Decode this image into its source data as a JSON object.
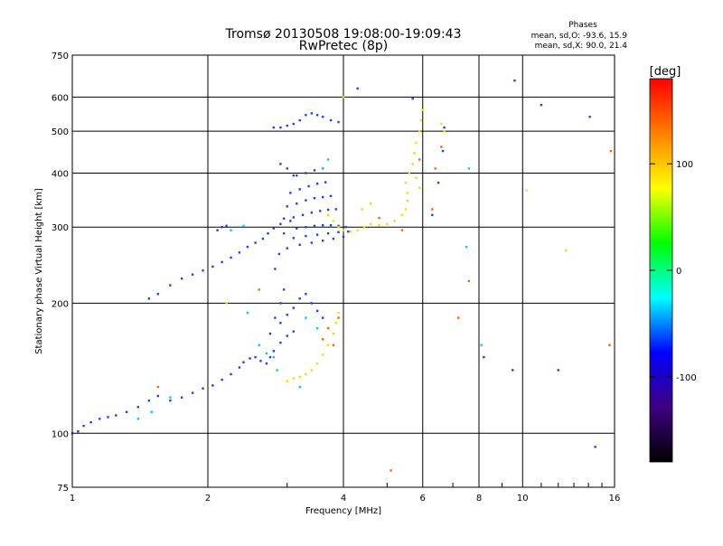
{
  "chart_data": {
    "type": "scatter",
    "title": "Tromsø 20130508 19:08:00-19:09:43",
    "subtitle": "RwPretec (8p)",
    "xlabel": "Frequency [MHz]",
    "ylabel": "Stationary phase Virtual Height [km]",
    "x_scale": "log",
    "y_scale": "log",
    "xlim": [
      1,
      16
    ],
    "ylim": [
      75,
      750
    ],
    "x_ticks": [
      1,
      2,
      4,
      6,
      8,
      10,
      16
    ],
    "y_ticks": [
      75,
      100,
      200,
      300,
      400,
      500,
      600,
      750
    ],
    "grid": true,
    "stats": {
      "heading": "Phases",
      "line_o": "mean, sd,O:  -93.6, 15.9",
      "line_x": "mean, sd,X:  90.0, 21.4"
    },
    "colorbar": {
      "label": "[deg]",
      "ticks": [
        100,
        0,
        -100
      ],
      "range": [
        -180,
        180
      ],
      "colors": [
        "#ff0000",
        "#ff8000",
        "#ffff00",
        "#00ff00",
        "#00ffff",
        "#0000ff",
        "#400080",
        "#000000"
      ]
    },
    "series": [
      {
        "name": "",
        "phase_deg": -95,
        "color": "#1a40ff",
        "points": [
          [
            1.0,
            100
          ],
          [
            1.03,
            101
          ],
          [
            1.06,
            104
          ],
          [
            1.1,
            106
          ],
          [
            1.15,
            108
          ],
          [
            1.2,
            109
          ],
          [
            1.25,
            110
          ],
          [
            1.32,
            112
          ],
          [
            1.4,
            115
          ],
          [
            1.48,
            119
          ],
          [
            1.55,
            122
          ],
          [
            1.65,
            119
          ],
          [
            1.75,
            121
          ],
          [
            1.85,
            124
          ],
          [
            1.95,
            127
          ],
          [
            2.05,
            129
          ],
          [
            2.15,
            133
          ],
          [
            2.25,
            137
          ],
          [
            2.35,
            142
          ],
          [
            2.4,
            146
          ],
          [
            2.48,
            149
          ],
          [
            2.55,
            150
          ],
          [
            2.62,
            147
          ],
          [
            2.7,
            145
          ],
          [
            2.75,
            150
          ],
          [
            2.8,
            155
          ],
          [
            2.9,
            162
          ],
          [
            3.0,
            168
          ],
          [
            3.1,
            172
          ],
          [
            1.48,
            205
          ],
          [
            1.55,
            210
          ],
          [
            1.65,
            220
          ],
          [
            1.75,
            228
          ],
          [
            1.85,
            233
          ],
          [
            1.95,
            238
          ],
          [
            2.05,
            243
          ],
          [
            2.15,
            249
          ],
          [
            2.25,
            255
          ],
          [
            2.35,
            262
          ],
          [
            2.45,
            270
          ],
          [
            2.55,
            276
          ],
          [
            2.65,
            282
          ],
          [
            2.72,
            290
          ],
          [
            2.8,
            298
          ],
          [
            2.9,
            305
          ],
          [
            2.1,
            295
          ],
          [
            2.15,
            300
          ],
          [
            2.2,
            302
          ],
          [
            2.9,
            180
          ],
          [
            3.0,
            188
          ],
          [
            3.1,
            195
          ],
          [
            3.2,
            205
          ],
          [
            3.3,
            210
          ],
          [
            3.4,
            200
          ],
          [
            3.5,
            192
          ],
          [
            3.6,
            185
          ],
          [
            2.75,
            170
          ],
          [
            2.82,
            185
          ],
          [
            2.9,
            200
          ],
          [
            2.95,
            215
          ],
          [
            2.82,
            240
          ],
          [
            2.88,
            260
          ],
          [
            2.95,
            290
          ],
          [
            3.05,
            310
          ],
          [
            3.15,
            298
          ],
          [
            3.3,
            300
          ],
          [
            3.45,
            302
          ],
          [
            3.6,
            303
          ],
          [
            3.75,
            303
          ],
          [
            3.9,
            302
          ],
          [
            4.05,
            300
          ],
          [
            2.95,
            314
          ],
          [
            3.1,
            316
          ],
          [
            3.25,
            320
          ],
          [
            3.4,
            324
          ],
          [
            3.55,
            327
          ],
          [
            3.7,
            329
          ],
          [
            3.85,
            330
          ],
          [
            3.0,
            335
          ],
          [
            3.15,
            340
          ],
          [
            3.3,
            346
          ],
          [
            3.45,
            350
          ],
          [
            3.6,
            352
          ],
          [
            3.75,
            354
          ],
          [
            3.05,
            360
          ],
          [
            3.2,
            367
          ],
          [
            3.35,
            373
          ],
          [
            3.5,
            378
          ],
          [
            3.65,
            381
          ],
          [
            3.15,
            395
          ],
          [
            3.3,
            400
          ],
          [
            3.45,
            406
          ],
          [
            3.6,
            410
          ],
          [
            2.9,
            420
          ],
          [
            3.0,
            410
          ],
          [
            3.1,
            395
          ],
          [
            3.0,
            268
          ],
          [
            3.2,
            273
          ],
          [
            3.4,
            276
          ],
          [
            3.6,
            279
          ],
          [
            3.8,
            282
          ],
          [
            4.0,
            285
          ],
          [
            3.1,
            283
          ],
          [
            3.3,
            286
          ],
          [
            3.5,
            288
          ],
          [
            3.7,
            290
          ],
          [
            3.9,
            292
          ],
          [
            4.1,
            293
          ],
          [
            3.1,
            520
          ],
          [
            3.2,
            530
          ],
          [
            3.3,
            545
          ],
          [
            3.4,
            550
          ],
          [
            3.5,
            545
          ],
          [
            3.6,
            540
          ],
          [
            3.75,
            530
          ],
          [
            3.9,
            525
          ],
          [
            3.0,
            515
          ],
          [
            2.9,
            510
          ],
          [
            2.8,
            510
          ],
          [
            4.3,
            628
          ],
          [
            5.7,
            595
          ],
          [
            6.7,
            510
          ],
          [
            6.65,
            450
          ],
          [
            6.5,
            380
          ],
          [
            6.3,
            320
          ],
          [
            9.6,
            655
          ],
          [
            11.0,
            575
          ],
          [
            14.1,
            540
          ],
          [
            9.5,
            140
          ],
          [
            12.0,
            140
          ],
          [
            14.5,
            93
          ],
          [
            8.2,
            150
          ]
        ]
      },
      {
        "name": "",
        "phase_deg": -30,
        "color": "#00c8ff",
        "points": [
          [
            1.4,
            108
          ],
          [
            1.5,
            112
          ],
          [
            1.65,
            121
          ],
          [
            2.25,
            295
          ],
          [
            2.4,
            302
          ],
          [
            2.45,
            190
          ],
          [
            2.6,
            160
          ],
          [
            2.7,
            153
          ],
          [
            2.8,
            150
          ],
          [
            2.85,
            140
          ],
          [
            3.3,
            185
          ],
          [
            3.5,
            175
          ],
          [
            3.2,
            128
          ],
          [
            3.6,
            410
          ],
          [
            3.7,
            430
          ],
          [
            7.6,
            410
          ],
          [
            7.5,
            270
          ],
          [
            8.1,
            160
          ]
        ]
      },
      {
        "name": "",
        "phase_deg": 90,
        "color": "#f0e000",
        "points": [
          [
            3.0,
            132
          ],
          [
            3.1,
            134
          ],
          [
            3.2,
            135
          ],
          [
            3.3,
            137
          ],
          [
            3.4,
            140
          ],
          [
            3.5,
            145
          ],
          [
            3.6,
            152
          ],
          [
            3.7,
            160
          ],
          [
            3.8,
            170
          ],
          [
            3.85,
            180
          ],
          [
            3.9,
            190
          ],
          [
            3.7,
            320
          ],
          [
            3.8,
            310
          ],
          [
            3.9,
            300
          ],
          [
            4.0,
            295
          ],
          [
            4.15,
            293
          ],
          [
            4.3,
            295
          ],
          [
            4.45,
            300
          ],
          [
            4.6,
            305
          ],
          [
            4.8,
            303
          ],
          [
            5.0,
            305
          ],
          [
            5.2,
            310
          ],
          [
            5.4,
            320
          ],
          [
            5.5,
            330
          ],
          [
            5.55,
            345
          ],
          [
            5.55,
            360
          ],
          [
            5.5,
            380
          ],
          [
            5.6,
            400
          ],
          [
            5.7,
            420
          ],
          [
            5.75,
            445
          ],
          [
            5.8,
            470
          ],
          [
            5.9,
            500
          ],
          [
            5.95,
            530
          ],
          [
            6.0,
            560
          ],
          [
            6.6,
            520
          ],
          [
            6.7,
            500
          ],
          [
            4.4,
            330
          ],
          [
            4.6,
            340
          ],
          [
            5.8,
            390
          ],
          [
            5.9,
            370
          ],
          [
            10.2,
            365
          ],
          [
            12.5,
            265
          ],
          [
            4.0,
            600
          ],
          [
            2.2,
            200
          ]
        ]
      },
      {
        "name": "",
        "phase_deg": 150,
        "color": "#ff6000",
        "points": [
          [
            3.6,
            165
          ],
          [
            3.7,
            175
          ],
          [
            3.8,
            160
          ],
          [
            3.9,
            185
          ],
          [
            5.9,
            430
          ],
          [
            6.6,
            460
          ],
          [
            6.4,
            410
          ],
          [
            6.3,
            330
          ],
          [
            5.4,
            295
          ],
          [
            7.2,
            185
          ],
          [
            15.6,
            160
          ],
          [
            15.7,
            450
          ],
          [
            1.55,
            128
          ],
          [
            2.6,
            215
          ],
          [
            5.1,
            82
          ],
          [
            7.6,
            225
          ],
          [
            4.8,
            315
          ]
        ]
      }
    ]
  }
}
